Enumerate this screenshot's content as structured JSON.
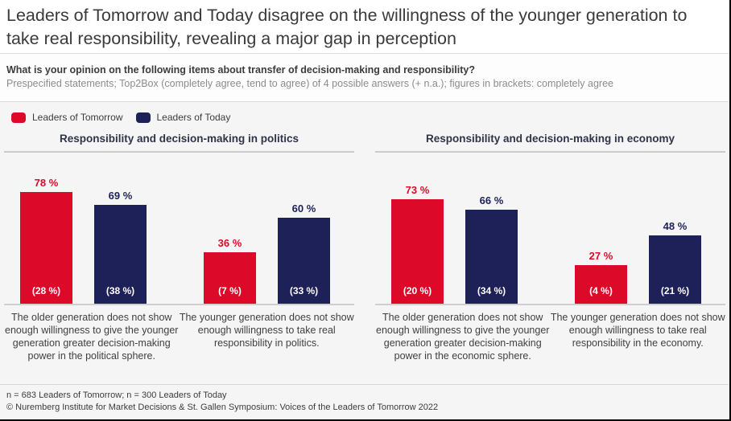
{
  "title": "Leaders of Tomorrow and Today disagree on the willingness of the younger generation to take real responsibility, revealing a major gap in perception",
  "question": {
    "bold": "What is your opinion on the following items about transfer of decision-making and responsibility?",
    "note": "Prespecified statements; Top2Box (completely agree, tend to agree) of 4 possible answers (+ n.a.); figures in brackets: completely agree"
  },
  "legend": {
    "tomorrow": "Leaders of Tomorrow",
    "today": "Leaders of Today"
  },
  "colors": {
    "tomorrow": "#dc0a28",
    "today": "#1e2058",
    "chart_background": "#f5f5f6"
  },
  "footer": {
    "line1": "n = 683 Leaders of Tomorrow; n = 300 Leaders of Today",
    "line2": "© Nuremberg Institute for Market Decisions & St. Gallen Symposium: Voices of the Leaders of Tomorrow 2022"
  },
  "chart_data": {
    "type": "bar",
    "unit": "%",
    "ylim": [
      0,
      100
    ],
    "grid": false,
    "legend_position": "top-left",
    "series_names": [
      "Leaders of Tomorrow",
      "Leaders of Today"
    ],
    "value_note": "Main value = Top2Box; value in brackets inside bar = completely agree",
    "sections": [
      {
        "title": "Responsibility and decision-making in politics",
        "groups": [
          {
            "statement": "The older generation does not show enough willingness to give the younger generation greater decision-making power in the political sphere.",
            "tomorrow": {
              "value": 78,
              "label": "78 %",
              "completely_agree": 28,
              "bracket": "(28 %)"
            },
            "today": {
              "value": 69,
              "label": "69 %",
              "completely_agree": 38,
              "bracket": "(38 %)"
            }
          },
          {
            "statement": "The younger generation does not show enough willingness to take real responsibility in politics.",
            "tomorrow": {
              "value": 36,
              "label": "36 %",
              "completely_agree": 7,
              "bracket": "(7 %)"
            },
            "today": {
              "value": 60,
              "label": "60 %",
              "completely_agree": 33,
              "bracket": "(33 %)"
            }
          }
        ]
      },
      {
        "title": "Responsibility and decision-making in economy",
        "groups": [
          {
            "statement": "The older generation does not show enough willingness to give the younger generation greater decision-making power in the economic sphere.",
            "tomorrow": {
              "value": 73,
              "label": "73 %",
              "completely_agree": 20,
              "bracket": "(20 %)"
            },
            "today": {
              "value": 66,
              "label": "66 %",
              "completely_agree": 34,
              "bracket": "(34 %)"
            }
          },
          {
            "statement": "The younger generation does not show enough willingness to take real responsibility in the economy.",
            "tomorrow": {
              "value": 27,
              "label": "27 %",
              "completely_agree": 4,
              "bracket": "(4 %)"
            },
            "today": {
              "value": 48,
              "label": "48 %",
              "completely_agree": 21,
              "bracket": "(21 %)"
            }
          }
        ]
      }
    ]
  }
}
